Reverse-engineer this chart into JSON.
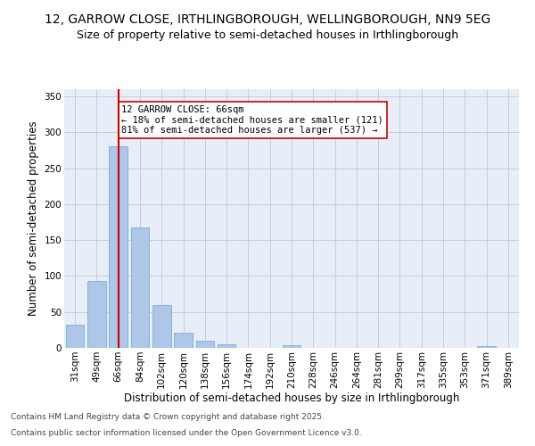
{
  "title_line1": "12, GARROW CLOSE, IRTHLINGBOROUGH, WELLINGBOROUGH, NN9 5EG",
  "title_line2": "Size of property relative to semi-detached houses in Irthlingborough",
  "xlabel": "Distribution of semi-detached houses by size in Irthlingborough",
  "ylabel": "Number of semi-detached properties",
  "categories": [
    "31sqm",
    "49sqm",
    "66sqm",
    "84sqm",
    "102sqm",
    "120sqm",
    "138sqm",
    "156sqm",
    "174sqm",
    "192sqm",
    "210sqm",
    "228sqm",
    "246sqm",
    "264sqm",
    "281sqm",
    "299sqm",
    "317sqm",
    "335sqm",
    "353sqm",
    "371sqm",
    "389sqm"
  ],
  "values": [
    32,
    93,
    280,
    168,
    60,
    21,
    10,
    5,
    0,
    0,
    4,
    0,
    0,
    0,
    0,
    0,
    0,
    0,
    0,
    3,
    0
  ],
  "bar_color": "#aec6e8",
  "bar_edge_color": "#7aafd4",
  "highlight_index": 2,
  "highlight_line_color": "#cc0000",
  "annotation_text": "12 GARROW CLOSE: 66sqm\n← 18% of semi-detached houses are smaller (121)\n81% of semi-detached houses are larger (537) →",
  "annotation_box_color": "#ffffff",
  "annotation_box_edge": "#cc0000",
  "ylim": [
    0,
    360
  ],
  "yticks": [
    0,
    50,
    100,
    150,
    200,
    250,
    300,
    350
  ],
  "background_color": "#e8eef8",
  "footer_line1": "Contains HM Land Registry data © Crown copyright and database right 2025.",
  "footer_line2": "Contains public sector information licensed under the Open Government Licence v3.0.",
  "title_fontsize": 10,
  "subtitle_fontsize": 9,
  "axis_label_fontsize": 8.5,
  "tick_fontsize": 7.5,
  "annotation_fontsize": 7.5,
  "footer_fontsize": 6.5
}
